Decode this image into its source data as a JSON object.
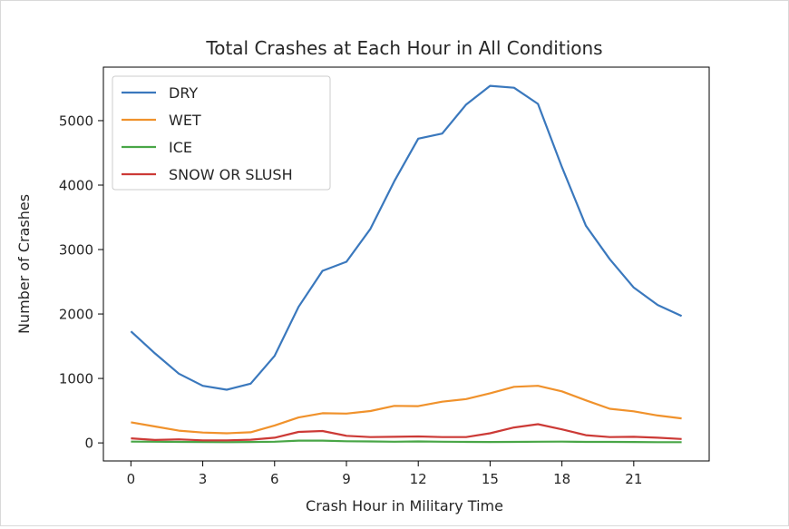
{
  "chart_data": {
    "type": "line",
    "title": "Total Crashes at Each Hour in All Conditions",
    "xlabel": "Crash Hour in Military Time",
    "ylabel": "Number of Crashes",
    "xlim": [
      -1.15,
      24.15
    ],
    "ylim": [
      -280,
      5830
    ],
    "xticks": [
      0,
      3,
      6,
      9,
      12,
      15,
      18,
      21
    ],
    "yticks": [
      0,
      1000,
      2000,
      3000,
      4000,
      5000
    ],
    "grid": false,
    "legend_position": "top-left",
    "x": [
      0,
      1,
      2,
      3,
      4,
      5,
      6,
      7,
      8,
      9,
      10,
      11,
      12,
      13,
      14,
      15,
      16,
      17,
      18,
      19,
      20,
      21,
      22,
      23
    ],
    "series": [
      {
        "name": "DRY",
        "color": "#3a78bd",
        "values": [
          1730,
          1390,
          1075,
          885,
          825,
          920,
          1350,
          2110,
          2670,
          2810,
          3320,
          4060,
          4720,
          4800,
          5250,
          5540,
          5510,
          5260,
          4280,
          3370,
          2850,
          2410,
          2140,
          1970
        ]
      },
      {
        "name": "WET",
        "color": "#f0922c",
        "values": [
          320,
          255,
          190,
          160,
          150,
          165,
          270,
          395,
          460,
          455,
          495,
          575,
          570,
          640,
          680,
          770,
          870,
          885,
          800,
          660,
          530,
          490,
          425,
          380
        ]
      },
      {
        "name": "ICE",
        "color": "#49a647",
        "values": [
          20,
          18,
          16,
          14,
          12,
          14,
          18,
          35,
          35,
          25,
          22,
          18,
          22,
          18,
          16,
          14,
          16,
          18,
          20,
          16,
          16,
          14,
          12,
          12
        ]
      },
      {
        "name": "SNOW OR SLUSH",
        "color": "#cc3a36",
        "values": [
          70,
          45,
          55,
          40,
          40,
          50,
          80,
          170,
          185,
          110,
          90,
          95,
          100,
          90,
          90,
          150,
          240,
          290,
          210,
          120,
          90,
          95,
          80,
          60
        ]
      }
    ]
  }
}
